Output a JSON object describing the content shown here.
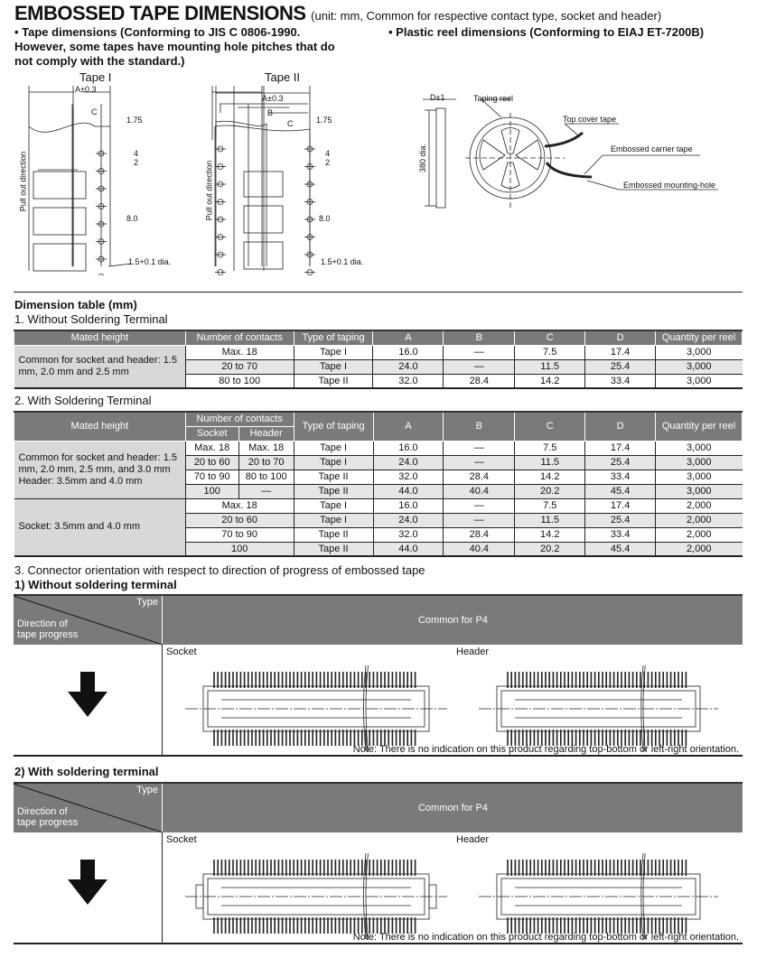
{
  "header": {
    "title": "EMBOSSED TAPE DIMENSIONS",
    "subtitle": "(unit: mm, Common for respective contact type, socket and header)"
  },
  "bullets": {
    "tape": "• Tape dimensions (Conforming to JIS C 0806-1990.",
    "tape_line2": "However, some tapes have mounting hole pitches that do",
    "tape_line3": "not comply with the standard.)",
    "reel": "• Plastic reel dimensions (Conforming to EIAJ ET-7200B)"
  },
  "diagrams": {
    "tape1": {
      "title": "Tape I",
      "a": "A±0.3",
      "c": "C",
      "d175": "1.75",
      "d4": "4",
      "d2": "2",
      "d8": "8.0",
      "hole": "1.5+0.1 dia.",
      "direction": "Pull out direction"
    },
    "tape2": {
      "title": "Tape II",
      "a": "A±0.3",
      "b": "B",
      "c": "C",
      "d175": "1.75",
      "d4": "4",
      "d2": "2",
      "d8": "8.0",
      "hole": "1.5+0.1 dia.",
      "direction": "Pull out direction"
    },
    "reel": {
      "d": "D±1",
      "dia": "380 dia.",
      "taping_reel": "Taping reel",
      "top_cover": "Top cover tape",
      "carrier": "Embossed carrier tape",
      "mounting": "Embossed mounting-hole"
    }
  },
  "dimension_table": {
    "title": "Dimension table (mm)",
    "section1": "1. Without Soldering Terminal",
    "section2": "2. With Soldering Terminal",
    "headers": {
      "mated": "Mated height",
      "contacts": "Number of contacts",
      "socket": "Socket",
      "header": "Header",
      "taping": "Type of taping",
      "a": "A",
      "b": "B",
      "c": "C",
      "d": "D",
      "qty": "Quantity per reel"
    },
    "t1_group": "Common for socket and header: 1.5 mm, 2.0 mm and 2.5 mm",
    "t1_rows": [
      [
        "Max. 18",
        "Tape I",
        "16.0",
        "—",
        "7.5",
        "17.4",
        "3,000"
      ],
      [
        "20 to 70",
        "Tape I",
        "24.0",
        "—",
        "11.5",
        "25.4",
        "3,000"
      ],
      [
        "80 to 100",
        "Tape II",
        "32.0",
        "28.4",
        "14.2",
        "33.4",
        "3,000"
      ]
    ],
    "t2_group1": "Common for socket and header: 1.5 mm, 2.0 mm, 2.5 mm, and 3.0 mm Header: 3.5mm and 4.0 mm",
    "t2_rows1": [
      [
        "Max. 18",
        "Max. 18",
        "Tape I",
        "16.0",
        "—",
        "7.5",
        "17.4",
        "3,000"
      ],
      [
        "20 to 60",
        "20 to 70",
        "Tape I",
        "24.0",
        "—",
        "11.5",
        "25.4",
        "3,000"
      ],
      [
        "70 to 90",
        "80 to 100",
        "Tape II",
        "32.0",
        "28.4",
        "14.2",
        "33.4",
        "3,000"
      ],
      [
        "100",
        "—",
        "Tape II",
        "44.0",
        "40.4",
        "20.2",
        "45.4",
        "3,000"
      ]
    ],
    "t2_group2": "Socket: 3.5mm and 4.0 mm",
    "t2_rows2": [
      [
        "Max. 18",
        "Tape I",
        "16.0",
        "—",
        "7.5",
        "17.4",
        "2,000"
      ],
      [
        "20 to 60",
        "Tape I",
        "24.0",
        "—",
        "11.5",
        "25.4",
        "2,000"
      ],
      [
        "70 to 90",
        "Tape II",
        "32.0",
        "28.4",
        "14.2",
        "33.4",
        "2,000"
      ],
      [
        "100",
        "Tape II",
        "44.0",
        "40.4",
        "20.2",
        "45.4",
        "2,000"
      ]
    ]
  },
  "orientation": {
    "title": "3. Connector orientation with respect to direction of progress of embossed tape",
    "type_label": "Type",
    "direction_label": "Direction of tape progress",
    "common": "Common for P4",
    "socket": "Socket",
    "header": "Header",
    "note": "Note: There is no indication on this product regarding top-bottom or left-right orientation.",
    "sub1": "1) Without soldering terminal",
    "sub2": "2) With soldering terminal"
  }
}
